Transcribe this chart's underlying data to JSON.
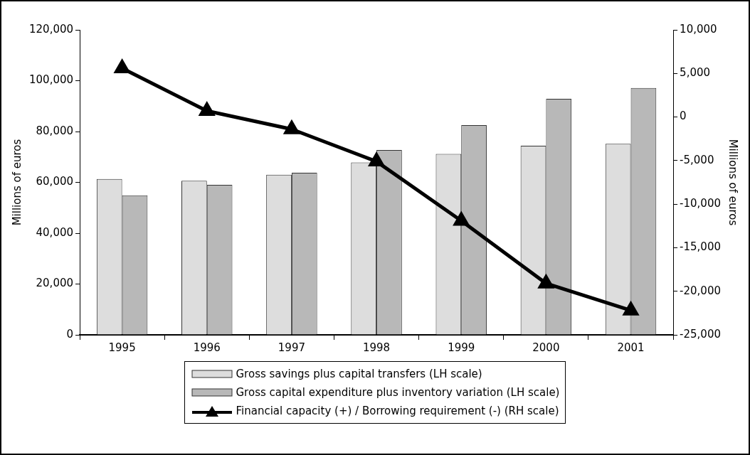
{
  "chart_data": {
    "type": "bar",
    "categories": [
      "1995",
      "1996",
      "1997",
      "1998",
      "1999",
      "2000",
      "2001"
    ],
    "ylabel": "Millions of euros",
    "y2label": "Millions of euros",
    "ylim": [
      0,
      120000
    ],
    "yticks": [
      0,
      {
        "value": 20000,
        "label": "20,000"
      },
      {
        "value": 40000,
        "label": "40,000"
      },
      {
        "value": 60000,
        "label": "60,000"
      },
      {
        "value": 80000,
        "label": "80,000"
      },
      {
        "value": 100000,
        "label": "100,000"
      },
      {
        "value": 120000,
        "label": "120,000"
      }
    ],
    "y2lim": [
      -25000,
      10000
    ],
    "y2ticks": [
      {
        "value": -25000,
        "label": "-25,000"
      },
      {
        "value": -20000,
        "label": "-20,000"
      },
      {
        "value": -15000,
        "label": "-15,000"
      },
      {
        "value": -10000,
        "label": "-10,000"
      },
      {
        "value": -5000,
        "label": "-5,000"
      },
      0,
      {
        "value": 5000,
        "label": "5,000"
      },
      {
        "value": 10000,
        "label": "10,000"
      }
    ],
    "grid": false,
    "legend": "bottom",
    "marker": "triangle",
    "line_style": "solid",
    "series": [
      {
        "name": "Gross savings plus capital transfers (LH scale)",
        "color": "#dddddd",
        "values": [
          61300,
          60600,
          63000,
          67800,
          71200,
          74400,
          75200
        ]
      },
      {
        "name": "Gross capital expenditure plus inventory variation (LH scale)",
        "color": "#b8b8b8",
        "values": [
          54900,
          59000,
          63800,
          72700,
          82500,
          92900,
          97100
        ]
      },
      {
        "name": "Financial capacity (+) / Borrowing requirement (-) (RH scale)",
        "type": "line",
        "axis": "y2",
        "color": "#000000",
        "values": [
          5600,
          700,
          -1400,
          -5100,
          -11900,
          -19100,
          -22200
        ]
      }
    ]
  }
}
